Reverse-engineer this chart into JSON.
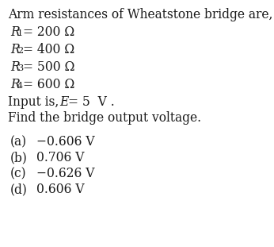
{
  "bg_color": "#ffffff",
  "text_color": "#1a1a1a",
  "title_line": "Arm resistances of Wheatstone bridge are,",
  "resistances": [
    {
      "sub": "1",
      "value": "= 200 Ω"
    },
    {
      "sub": "2",
      "value": "= 400 Ω"
    },
    {
      "sub": "3",
      "value": "= 500 Ω"
    },
    {
      "sub": "4",
      "value": "= 600 Ω"
    }
  ],
  "input_line2": "Find the bridge output voltage.",
  "options": [
    {
      "label": "(a)",
      "value": "−0.606 V"
    },
    {
      "label": "(b)",
      "value": "0.706 V"
    },
    {
      "label": "(c)",
      "value": "−0.626 V"
    },
    {
      "label": "(d)",
      "value": "0.606 V"
    }
  ],
  "fs": 11.2,
  "lh": 22,
  "fig_w": 3.46,
  "fig_h": 3.11,
  "dpi": 100
}
